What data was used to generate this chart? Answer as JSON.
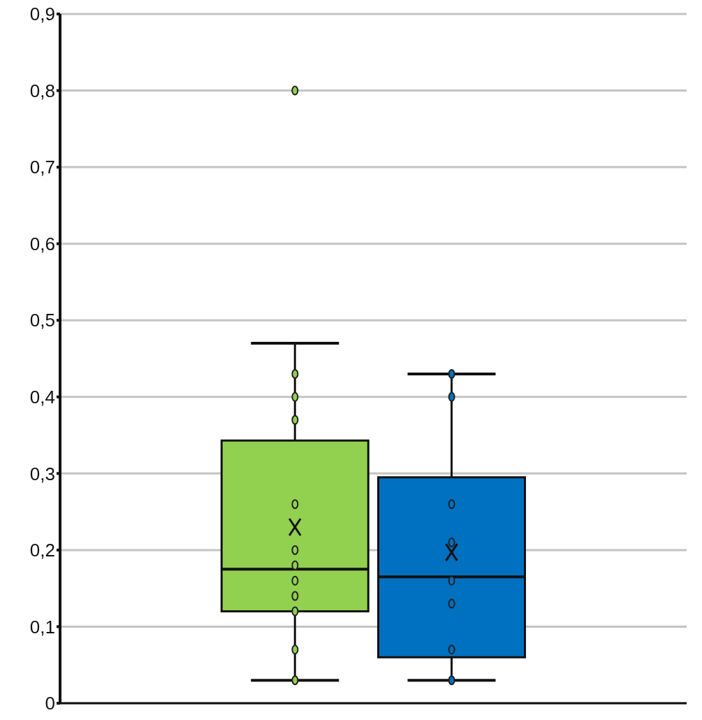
{
  "chart_data": {
    "type": "box",
    "categories": [
      null,
      null,
      null,
      null
    ],
    "boxes": [
      null,
      {
        "low": 0.03,
        "q1": 0.12,
        "median": 0.175,
        "q3": 0.343,
        "high": 0.47,
        "mean": 0.23,
        "outliers": [
          0.8
        ]
      },
      {
        "low": 0.03,
        "q1": 0.06,
        "median": 0.165,
        "q3": 0.295,
        "high": 0.43,
        "mean": 0.197
      },
      null
    ],
    "colors": [
      null,
      "#92d050",
      "#0070c0",
      null
    ],
    "series": [
      {
        "type": "scatter",
        "colors": [
          null,
          "#92d050",
          "#0070c0",
          null
        ],
        "values": [
          null,
          0.03,
          0.03,
          null
        ]
      },
      {
        "type": "scatter",
        "colors": [
          null,
          "#92d050",
          "#0070c0",
          null
        ],
        "values": [
          null,
          0.07,
          0.07,
          null
        ]
      },
      {
        "type": "scatter",
        "colors": [
          null,
          "#92d050",
          "#0070c0",
          null
        ],
        "values": [
          null,
          0.12,
          0.13,
          null
        ]
      },
      {
        "type": "scatter",
        "colors": [
          null,
          "#92d050",
          "#0070c0",
          null
        ],
        "values": [
          null,
          0.14,
          0.16,
          null
        ]
      },
      {
        "type": "scatter",
        "colors": [
          null,
          "#92d050",
          "#0070c0",
          null
        ],
        "values": [
          null,
          0.16,
          0.21,
          null
        ]
      },
      {
        "type": "scatter",
        "colors": [
          null,
          "#92d050",
          "#0070c0",
          null
        ],
        "values": [
          null,
          0.18,
          0.26,
          null
        ]
      },
      {
        "type": "scatter",
        "colors": [
          null,
          "#92d050",
          "#0070c0",
          null
        ],
        "values": [
          null,
          0.2,
          0.4,
          null
        ]
      },
      {
        "type": "scatter",
        "colors": [
          null,
          "#92d050",
          "#0070c0",
          null
        ],
        "values": [
          null,
          0.26,
          0.43,
          null
        ]
      },
      {
        "type": "scatter",
        "colors": [
          null,
          "#92d050",
          null,
          null
        ],
        "values": [
          null,
          0.37,
          null,
          null
        ]
      },
      {
        "type": "scatter",
        "colors": [
          null,
          "#92d050",
          null,
          null
        ],
        "values": [
          null,
          0.4,
          null,
          null
        ]
      },
      {
        "type": "scatter",
        "colors": [
          null,
          "#92d050",
          null,
          null
        ],
        "values": [
          null,
          0.43,
          null,
          null
        ]
      }
    ],
    "marker": "circle",
    "ylim": [
      0,
      0.9
    ],
    "yticks": [
      0,
      {
        "value": 0.1,
        "label": "0,1"
      },
      {
        "value": 0.2,
        "label": "0,2"
      },
      {
        "value": 0.3,
        "label": "0,3"
      },
      {
        "value": 0.4,
        "label": "0,4"
      },
      {
        "value": 0.5,
        "label": "0,5"
      },
      {
        "value": 0.6,
        "label": "0,6"
      },
      {
        "value": 0.7,
        "label": "0,7"
      },
      {
        "value": 0.8,
        "label": "0,8"
      },
      {
        "value": 0.9,
        "label": "0,9"
      }
    ],
    "grid": "y"
  }
}
